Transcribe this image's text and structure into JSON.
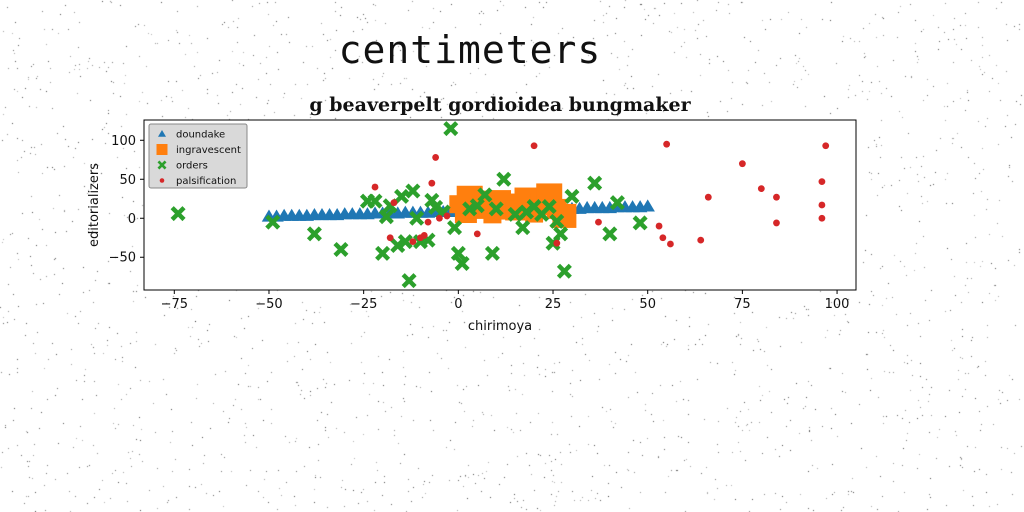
{
  "page": {
    "heading": "centimeters"
  },
  "colors": {
    "background": "#ffffff",
    "series": [
      "#1f77b4",
      "#ff7f0e",
      "#2ca02c",
      "#d62728"
    ]
  },
  "chart_data": {
    "type": "scatter",
    "title": "g beaverpelt gordioidea bungmaker",
    "xlabel": "chirimoya",
    "ylabel": "editorializers",
    "xlim": [
      -83,
      105
    ],
    "ylim": [
      -92,
      126
    ],
    "xticks": [
      -75,
      -50,
      -25,
      0,
      25,
      50,
      75,
      100
    ],
    "xtick_labels": [
      "−75",
      "−50",
      "−25",
      "0",
      "25",
      "50",
      "75",
      "100"
    ],
    "yticks": [
      -50,
      0,
      50,
      100
    ],
    "ytick_labels": [
      "−50",
      "0",
      "50",
      "100"
    ],
    "grid": false,
    "legend_position": "top-left",
    "series": [
      {
        "name": "doundake",
        "marker": "triangle",
        "color": "#1f77b4",
        "x": [
          -50,
          -48,
          -46,
          -44,
          -42,
          -40,
          -38,
          -36,
          -34,
          -32,
          -30,
          -28,
          -26,
          -24,
          -22,
          -20,
          -18,
          -16,
          -14,
          -12,
          -10,
          -8,
          -6,
          -4,
          -2,
          0,
          2,
          4,
          6,
          8,
          10,
          12,
          14,
          16,
          18,
          20,
          22,
          24,
          26,
          28,
          30,
          32,
          34,
          36,
          38,
          40,
          42,
          44,
          46,
          48,
          50
        ],
        "y": [
          2,
          2,
          3,
          3,
          3,
          3,
          4,
          4,
          4,
          4,
          5,
          5,
          5,
          5,
          6,
          6,
          6,
          6,
          7,
          7,
          7,
          7,
          8,
          8,
          8,
          8,
          9,
          9,
          9,
          9,
          10,
          10,
          10,
          10,
          11,
          11,
          11,
          11,
          12,
          12,
          12,
          12,
          13,
          13,
          13,
          13,
          14,
          14,
          14,
          14,
          15
        ]
      },
      {
        "name": "ingravescent",
        "marker": "square",
        "color": "#ff7f0e",
        "x": [
          0,
          2,
          3,
          5,
          7,
          9,
          11,
          13,
          15,
          18,
          20,
          22,
          24,
          26,
          28
        ],
        "y": [
          18,
          8,
          25,
          12,
          20,
          5,
          22,
          15,
          10,
          24,
          6,
          18,
          28,
          12,
          3
        ]
      },
      {
        "name": "orders",
        "marker": "x",
        "color": "#2ca02c",
        "x": [
          -74,
          -49,
          -38,
          -31,
          -24,
          -22,
          -20,
          -19,
          -18,
          -16,
          -15,
          -14,
          -13,
          -12,
          -11,
          -10,
          -8,
          -7,
          -6,
          -4,
          -2,
          -1,
          0,
          1,
          3,
          5,
          7,
          9,
          10,
          12,
          15,
          17,
          18,
          20,
          22,
          24,
          25,
          26,
          27,
          28,
          30,
          36,
          40,
          42,
          48
        ],
        "y": [
          6,
          -5,
          -20,
          -40,
          22,
          22,
          -45,
          2,
          16,
          -35,
          28,
          -30,
          -80,
          35,
          0,
          -30,
          -28,
          23,
          14,
          8,
          115,
          -12,
          -45,
          -58,
          12,
          16,
          30,
          -45,
          12,
          50,
          5,
          -12,
          8,
          15,
          5,
          15,
          -32,
          -4,
          -20,
          -68,
          28,
          45,
          -20,
          20,
          -6
        ]
      },
      {
        "name": "palsification",
        "marker": "circle",
        "color": "#d62728",
        "x": [
          -22,
          -18,
          -17,
          -12,
          -10,
          -9,
          -8,
          -7,
          -6,
          -5,
          -3,
          5,
          20,
          26,
          37,
          53,
          54,
          55,
          56,
          64,
          66,
          75,
          80,
          84,
          84,
          96,
          96,
          96,
          97
        ],
        "y": [
          40,
          -25,
          20,
          -30,
          -25,
          -22,
          -5,
          45,
          78,
          0,
          3,
          -20,
          93,
          -32,
          -5,
          -10,
          -25,
          95,
          -33,
          -28,
          27,
          70,
          38,
          -6,
          27,
          47,
          17,
          0,
          93
        ]
      }
    ]
  }
}
